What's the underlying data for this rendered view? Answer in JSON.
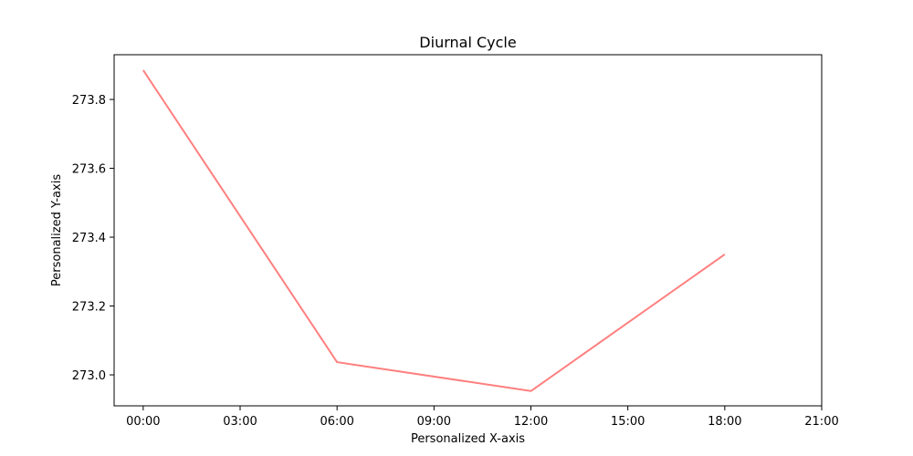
{
  "chart_data": {
    "type": "line",
    "title": "Diurnal Cycle",
    "xlabel": "Personalized X-axis",
    "ylabel": "Personalized Y-axis",
    "x": [
      "00:00",
      "06:00",
      "12:00",
      "18:00"
    ],
    "x_hours": [
      0,
      6,
      12,
      18
    ],
    "xlim_hours": [
      -0.9,
      21
    ],
    "x_ticks_hours": [
      0,
      3,
      6,
      9,
      12,
      15,
      18,
      21
    ],
    "x_tick_labels": [
      "00:00",
      "03:00",
      "06:00",
      "09:00",
      "12:00",
      "15:00",
      "18:00",
      "21:00"
    ],
    "y_ticks": [
      273.0,
      273.2,
      273.4,
      273.6,
      273.8
    ],
    "y_tick_labels": [
      "273.0",
      "273.2",
      "273.4",
      "273.6",
      "273.8"
    ],
    "ylim": [
      272.91,
      273.93
    ],
    "series": [
      {
        "values": [
          273.885,
          273.037,
          272.953,
          273.35
        ],
        "color": "#ff7f7f"
      }
    ],
    "grid": false,
    "legend": false
  }
}
